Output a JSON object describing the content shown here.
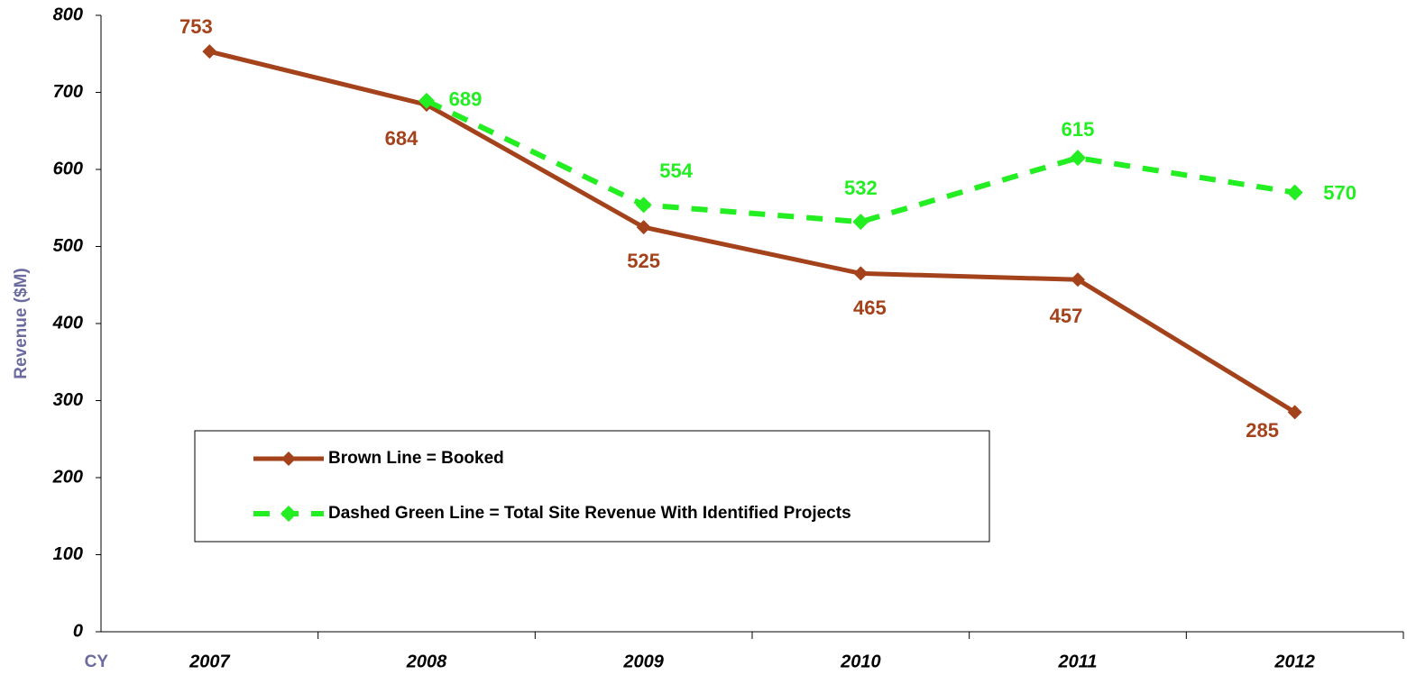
{
  "chart_data": {
    "type": "line",
    "x_label": "CY",
    "y_label": "Revenue ($M)",
    "categories": [
      "2007",
      "2008",
      "2009",
      "2010",
      "2011",
      "2012"
    ],
    "series": [
      {
        "name": "Brown Line = Booked",
        "color": "#a3421b",
        "dashed": false,
        "values": [
          753,
          684,
          525,
          465,
          457,
          285
        ]
      },
      {
        "name": "Dashed Green Line = Total Site Revenue With Identified Projects",
        "color": "#22ee22",
        "dashed": true,
        "values": [
          null,
          689,
          554,
          532,
          615,
          570
        ]
      }
    ],
    "ylim": [
      0,
      800
    ],
    "yticks": [
      0,
      100,
      200,
      300,
      400,
      500,
      600,
      700,
      800
    ],
    "grid": false
  }
}
